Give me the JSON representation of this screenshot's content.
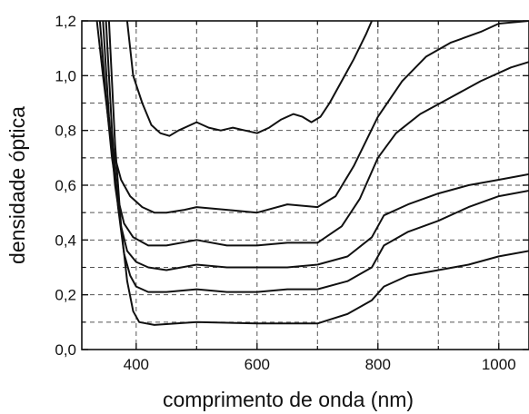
{
  "chart_data": {
    "type": "line",
    "title": "",
    "xlabel": "comprimento de onda (nm)",
    "ylabel": "densidade óptica",
    "xlim": [
      310,
      1050
    ],
    "ylim": [
      0,
      1.2
    ],
    "x_ticks": [
      400,
      600,
      800,
      1000
    ],
    "x_tick_labels": [
      "400",
      "600",
      "800",
      "1000"
    ],
    "y_ticks": [
      0,
      0.2,
      0.4,
      0.6,
      0.8,
      1.0,
      1.2
    ],
    "y_tick_labels": [
      "0,0",
      "0,2",
      "0,4",
      "0,6",
      "0,8",
      "1,0",
      "1,2"
    ],
    "grid": true,
    "series": [
      {
        "x": [
          355,
          365,
          375,
          385,
          395,
          405,
          430,
          500,
          600,
          700,
          750,
          790,
          810,
          850,
          900,
          950,
          1000,
          1050
        ],
        "y": [
          1.2,
          0.75,
          0.45,
          0.25,
          0.14,
          0.1,
          0.09,
          0.1,
          0.095,
          0.095,
          0.13,
          0.18,
          0.23,
          0.27,
          0.29,
          0.31,
          0.34,
          0.36
        ]
      },
      {
        "x": [
          350,
          360,
          370,
          380,
          390,
          400,
          420,
          450,
          500,
          550,
          600,
          650,
          700,
          750,
          790,
          810,
          850,
          900,
          950,
          1000,
          1050
        ],
        "y": [
          1.2,
          0.8,
          0.52,
          0.35,
          0.27,
          0.23,
          0.21,
          0.21,
          0.22,
          0.21,
          0.21,
          0.22,
          0.22,
          0.25,
          0.3,
          0.38,
          0.43,
          0.47,
          0.52,
          0.56,
          0.58
        ]
      },
      {
        "x": [
          345,
          355,
          365,
          375,
          385,
          400,
          420,
          450,
          500,
          550,
          600,
          650,
          700,
          750,
          790,
          810,
          850,
          900,
          950,
          1000,
          1050
        ],
        "y": [
          1.2,
          0.85,
          0.6,
          0.45,
          0.36,
          0.32,
          0.3,
          0.29,
          0.31,
          0.3,
          0.3,
          0.3,
          0.31,
          0.34,
          0.41,
          0.49,
          0.53,
          0.57,
          0.6,
          0.62,
          0.64
        ]
      },
      {
        "x": [
          340,
          350,
          360,
          370,
          380,
          395,
          420,
          450,
          500,
          550,
          600,
          650,
          700,
          740,
          770,
          800,
          830,
          870,
          920,
          970,
          1020,
          1050
        ],
        "y": [
          1.2,
          0.92,
          0.7,
          0.55,
          0.46,
          0.41,
          0.38,
          0.38,
          0.4,
          0.38,
          0.38,
          0.39,
          0.39,
          0.45,
          0.55,
          0.7,
          0.79,
          0.86,
          0.92,
          0.98,
          1.03,
          1.05
        ]
      },
      {
        "x": [
          335,
          345,
          355,
          365,
          375,
          390,
          410,
          430,
          450,
          480,
          500,
          550,
          600,
          650,
          700,
          730,
          760,
          800,
          840,
          880,
          920,
          970,
          1000,
          1050
        ],
        "y": [
          1.2,
          1.0,
          0.82,
          0.7,
          0.62,
          0.56,
          0.52,
          0.5,
          0.5,
          0.51,
          0.52,
          0.51,
          0.5,
          0.53,
          0.52,
          0.56,
          0.67,
          0.85,
          0.98,
          1.07,
          1.12,
          1.16,
          1.19,
          1.2
        ]
      },
      {
        "x": [
          385,
          395,
          410,
          425,
          440,
          455,
          470,
          500,
          520,
          540,
          560,
          580,
          600,
          620,
          640,
          660,
          675,
          690,
          705,
          720,
          740,
          760,
          780,
          790
        ],
        "y": [
          1.2,
          1.0,
          0.9,
          0.82,
          0.79,
          0.78,
          0.8,
          0.83,
          0.81,
          0.8,
          0.81,
          0.8,
          0.79,
          0.81,
          0.84,
          0.86,
          0.85,
          0.83,
          0.85,
          0.9,
          0.98,
          1.06,
          1.15,
          1.2
        ]
      }
    ]
  }
}
